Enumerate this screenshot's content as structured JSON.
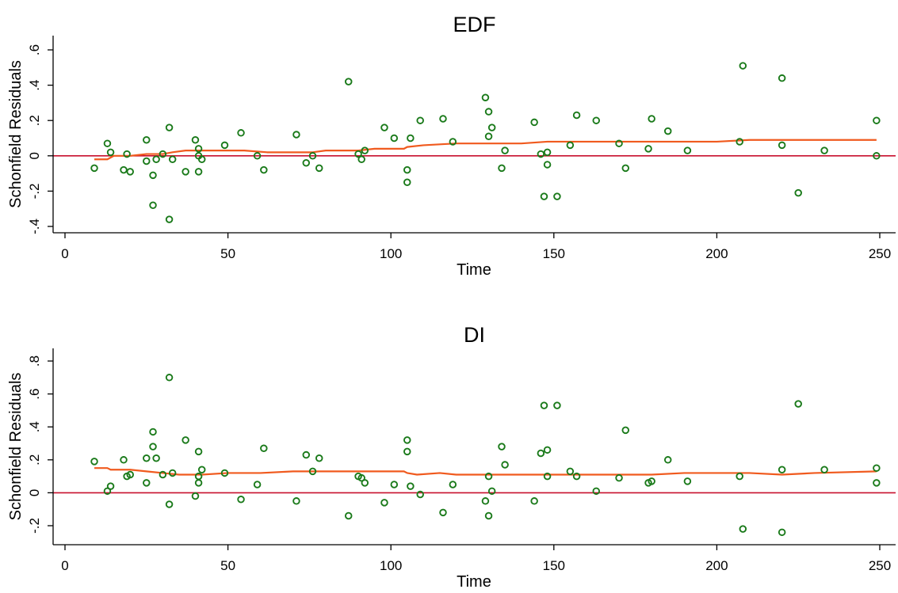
{
  "chart_data": [
    {
      "type": "scatter",
      "title": "EDF",
      "xlabel": "Time",
      "ylabel": "Schonfield Residuals",
      "xlim": [
        0,
        250
      ],
      "ylim": [
        -0.4,
        0.6
      ],
      "xticks": [
        0,
        50,
        100,
        150,
        200,
        250
      ],
      "xtick_labels": [
        "0",
        "50",
        "100",
        "150",
        "200",
        "250"
      ],
      "yticks": [
        -0.4,
        -0.2,
        0,
        0.2,
        0.4,
        0.6
      ],
      "ytick_labels": [
        "-.4",
        "-.2",
        "0",
        ".2",
        ".4",
        ".6"
      ],
      "reference_line_y": 0,
      "colors": {
        "points": "#1a7a1a",
        "smooth": "#f05a1e",
        "reference": "#c8102e"
      },
      "points": [
        [
          9,
          -0.07
        ],
        [
          13,
          0.07
        ],
        [
          14,
          0.02
        ],
        [
          18,
          -0.08
        ],
        [
          19,
          0.01
        ],
        [
          20,
          -0.09
        ],
        [
          25,
          0.09
        ],
        [
          25,
          -0.03
        ],
        [
          27,
          -0.11
        ],
        [
          27,
          -0.28
        ],
        [
          28,
          -0.02
        ],
        [
          30,
          0.01
        ],
        [
          32,
          0.16
        ],
        [
          32,
          -0.36
        ],
        [
          33,
          -0.02
        ],
        [
          37,
          -0.09
        ],
        [
          40,
          0.09
        ],
        [
          41,
          0.04
        ],
        [
          41,
          0.0
        ],
        [
          41,
          -0.09
        ],
        [
          42,
          -0.02
        ],
        [
          49,
          0.06
        ],
        [
          54,
          0.13
        ],
        [
          59,
          0.0
        ],
        [
          61,
          -0.08
        ],
        [
          71,
          0.12
        ],
        [
          74,
          -0.04
        ],
        [
          76,
          0.0
        ],
        [
          78,
          -0.07
        ],
        [
          87,
          0.42
        ],
        [
          90,
          0.01
        ],
        [
          91,
          -0.02
        ],
        [
          92,
          0.03
        ],
        [
          98,
          0.16
        ],
        [
          101,
          0.1
        ],
        [
          105,
          -0.08
        ],
        [
          105,
          -0.15
        ],
        [
          106,
          0.1
        ],
        [
          109,
          0.2
        ],
        [
          116,
          0.21
        ],
        [
          119,
          0.08
        ],
        [
          129,
          0.33
        ],
        [
          130,
          0.25
        ],
        [
          130,
          0.11
        ],
        [
          131,
          0.16
        ],
        [
          134,
          -0.07
        ],
        [
          135,
          0.03
        ],
        [
          144,
          0.19
        ],
        [
          146,
          0.01
        ],
        [
          147,
          -0.23
        ],
        [
          148,
          0.02
        ],
        [
          148,
          -0.05
        ],
        [
          151,
          -0.23
        ],
        [
          155,
          0.06
        ],
        [
          157,
          0.23
        ],
        [
          163,
          0.2
        ],
        [
          170,
          0.07
        ],
        [
          172,
          -0.07
        ],
        [
          179,
          0.04
        ],
        [
          180,
          0.21
        ],
        [
          185,
          0.14
        ],
        [
          191,
          0.03
        ],
        [
          207,
          0.08
        ],
        [
          208,
          0.51
        ],
        [
          220,
          0.44
        ],
        [
          220,
          0.06
        ],
        [
          225,
          -0.21
        ],
        [
          233,
          0.03
        ],
        [
          249,
          0.2
        ],
        [
          249,
          0.0
        ]
      ],
      "smooth_line": [
        [
          9,
          -0.02
        ],
        [
          13,
          -0.02
        ],
        [
          15,
          0.0
        ],
        [
          20,
          0.0
        ],
        [
          25,
          0.01
        ],
        [
          30,
          0.01
        ],
        [
          33,
          0.02
        ],
        [
          37,
          0.03
        ],
        [
          42,
          0.03
        ],
        [
          48,
          0.03
        ],
        [
          55,
          0.03
        ],
        [
          62,
          0.02
        ],
        [
          70,
          0.02
        ],
        [
          76,
          0.02
        ],
        [
          80,
          0.03
        ],
        [
          90,
          0.03
        ],
        [
          95,
          0.04
        ],
        [
          100,
          0.04
        ],
        [
          104,
          0.04
        ],
        [
          105,
          0.05
        ],
        [
          110,
          0.06
        ],
        [
          120,
          0.07
        ],
        [
          130,
          0.07
        ],
        [
          140,
          0.07
        ],
        [
          148,
          0.08
        ],
        [
          160,
          0.08
        ],
        [
          170,
          0.08
        ],
        [
          180,
          0.08
        ],
        [
          190,
          0.08
        ],
        [
          200,
          0.08
        ],
        [
          210,
          0.09
        ],
        [
          220,
          0.09
        ],
        [
          230,
          0.09
        ],
        [
          249,
          0.09
        ]
      ]
    },
    {
      "type": "scatter",
      "title": "DI",
      "xlabel": "Time",
      "ylabel": "Schonfield Residuals",
      "xlim": [
        0,
        250
      ],
      "ylim": [
        -0.3,
        0.8
      ],
      "xticks": [
        0,
        50,
        100,
        150,
        200,
        250
      ],
      "xtick_labels": [
        "0",
        "50",
        "100",
        "150",
        "200",
        "250"
      ],
      "yticks": [
        -0.2,
        0,
        0.2,
        0.4,
        0.6,
        0.8
      ],
      "ytick_labels": [
        "-.2",
        "0",
        ".2",
        ".4",
        ".6",
        ".8"
      ],
      "reference_line_y": 0,
      "colors": {
        "points": "#1a7a1a",
        "smooth": "#f05a1e",
        "reference": "#c8102e"
      },
      "points": [
        [
          9,
          0.19
        ],
        [
          13,
          0.01
        ],
        [
          14,
          0.04
        ],
        [
          18,
          0.2
        ],
        [
          19,
          0.1
        ],
        [
          20,
          0.11
        ],
        [
          25,
          0.21
        ],
        [
          25,
          0.06
        ],
        [
          27,
          0.37
        ],
        [
          27,
          0.28
        ],
        [
          28,
          0.21
        ],
        [
          30,
          0.11
        ],
        [
          32,
          0.7
        ],
        [
          32,
          -0.07
        ],
        [
          33,
          0.12
        ],
        [
          37,
          0.32
        ],
        [
          40,
          -0.02
        ],
        [
          41,
          0.25
        ],
        [
          41,
          0.1
        ],
        [
          41,
          0.06
        ],
        [
          42,
          0.14
        ],
        [
          49,
          0.12
        ],
        [
          54,
          -0.04
        ],
        [
          59,
          0.05
        ],
        [
          61,
          0.27
        ],
        [
          71,
          -0.05
        ],
        [
          74,
          0.23
        ],
        [
          76,
          0.13
        ],
        [
          78,
          0.21
        ],
        [
          87,
          -0.14
        ],
        [
          90,
          0.1
        ],
        [
          91,
          0.09
        ],
        [
          92,
          0.06
        ],
        [
          98,
          -0.06
        ],
        [
          101,
          0.05
        ],
        [
          105,
          0.32
        ],
        [
          105,
          0.25
        ],
        [
          106,
          0.04
        ],
        [
          109,
          -0.01
        ],
        [
          116,
          -0.12
        ],
        [
          119,
          0.05
        ],
        [
          129,
          -0.05
        ],
        [
          130,
          0.1
        ],
        [
          130,
          -0.14
        ],
        [
          131,
          0.01
        ],
        [
          134,
          0.28
        ],
        [
          135,
          0.17
        ],
        [
          144,
          -0.05
        ],
        [
          146,
          0.24
        ],
        [
          147,
          0.53
        ],
        [
          148,
          0.26
        ],
        [
          148,
          0.1
        ],
        [
          151,
          0.53
        ],
        [
          155,
          0.13
        ],
        [
          157,
          0.1
        ],
        [
          163,
          0.01
        ],
        [
          170,
          0.09
        ],
        [
          172,
          0.38
        ],
        [
          179,
          0.06
        ],
        [
          180,
          0.07
        ],
        [
          185,
          0.2
        ],
        [
          191,
          0.07
        ],
        [
          207,
          0.1
        ],
        [
          208,
          -0.22
        ],
        [
          220,
          0.14
        ],
        [
          220,
          -0.24
        ],
        [
          225,
          0.54
        ],
        [
          233,
          0.14
        ],
        [
          249,
          0.15
        ],
        [
          249,
          0.06
        ]
      ],
      "smooth_line": [
        [
          9,
          0.15
        ],
        [
          13,
          0.15
        ],
        [
          14,
          0.14
        ],
        [
          20,
          0.14
        ],
        [
          25,
          0.13
        ],
        [
          30,
          0.12
        ],
        [
          35,
          0.11
        ],
        [
          42,
          0.11
        ],
        [
          50,
          0.12
        ],
        [
          60,
          0.12
        ],
        [
          70,
          0.13
        ],
        [
          80,
          0.13
        ],
        [
          90,
          0.13
        ],
        [
          95,
          0.13
        ],
        [
          100,
          0.13
        ],
        [
          104,
          0.13
        ],
        [
          105,
          0.12
        ],
        [
          108,
          0.11
        ],
        [
          115,
          0.12
        ],
        [
          120,
          0.11
        ],
        [
          130,
          0.11
        ],
        [
          140,
          0.11
        ],
        [
          150,
          0.11
        ],
        [
          160,
          0.11
        ],
        [
          170,
          0.11
        ],
        [
          180,
          0.11
        ],
        [
          190,
          0.12
        ],
        [
          200,
          0.12
        ],
        [
          210,
          0.12
        ],
        [
          220,
          0.11
        ],
        [
          230,
          0.12
        ],
        [
          249,
          0.13
        ]
      ]
    }
  ]
}
